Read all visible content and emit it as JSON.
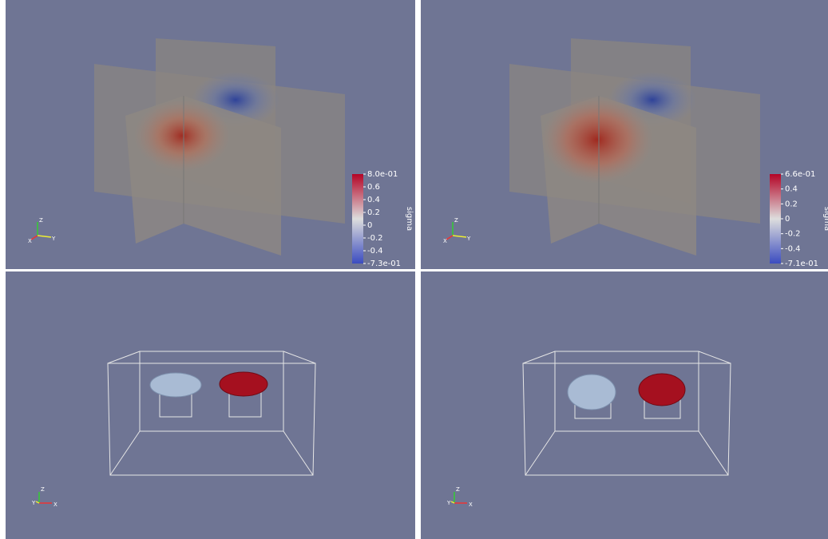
{
  "panels": [
    {
      "colorbar": {
        "title": "sigma",
        "labels": [
          "8.0e-01",
          "0.6",
          "0.4",
          "0.2",
          "0",
          "-0.2",
          "-0.4",
          "-7.3e-01"
        ]
      },
      "axes": {
        "z": "Z",
        "x": "X",
        "y": "Y"
      }
    },
    {
      "colorbar": {
        "title": "sigma",
        "labels": [
          "6.6e-01",
          "0.4",
          "0.2",
          "0",
          "-0.2",
          "-0.4",
          "-7.1e-01"
        ]
      },
      "axes": {
        "z": "Z",
        "x": "X",
        "y": "Y"
      }
    },
    {
      "axes": {
        "z": "Z",
        "x": "X",
        "y": "Y"
      }
    },
    {
      "axes": {
        "z": "Z",
        "x": "X",
        "y": "Y"
      }
    }
  ]
}
